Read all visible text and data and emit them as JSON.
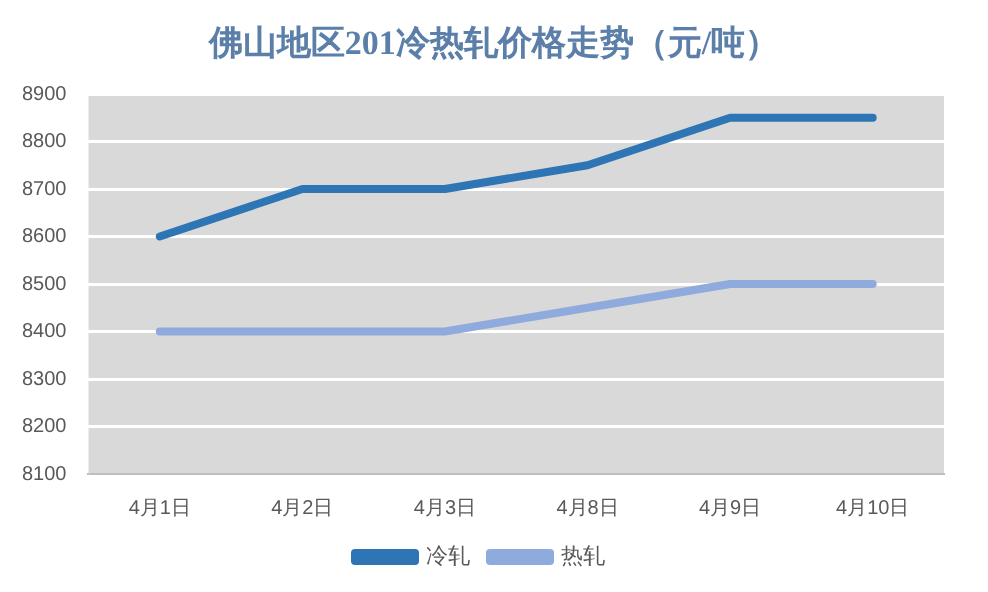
{
  "chart_data": {
    "type": "line",
    "title": "佛山地区201冷热轧价格走势（元/吨）",
    "categories": [
      "4月1日",
      "4月2日",
      "4月3日",
      "4月8日",
      "4月9日",
      "4月10日"
    ],
    "series": [
      {
        "name": "冷轧",
        "color": "#2e75b6",
        "values": [
          8600,
          8700,
          8700,
          8750,
          8850,
          8850
        ]
      },
      {
        "name": "热轧",
        "color": "#8faadc",
        "values": [
          8400,
          8400,
          8400,
          8450,
          8500,
          8500
        ]
      }
    ],
    "ylim": [
      8100,
      8900
    ],
    "yticks": [
      8100,
      8200,
      8300,
      8400,
      8500,
      8600,
      8700,
      8800,
      8900
    ],
    "grid": "y",
    "legend": "bottom",
    "marker": "none",
    "line_style": "solid"
  }
}
